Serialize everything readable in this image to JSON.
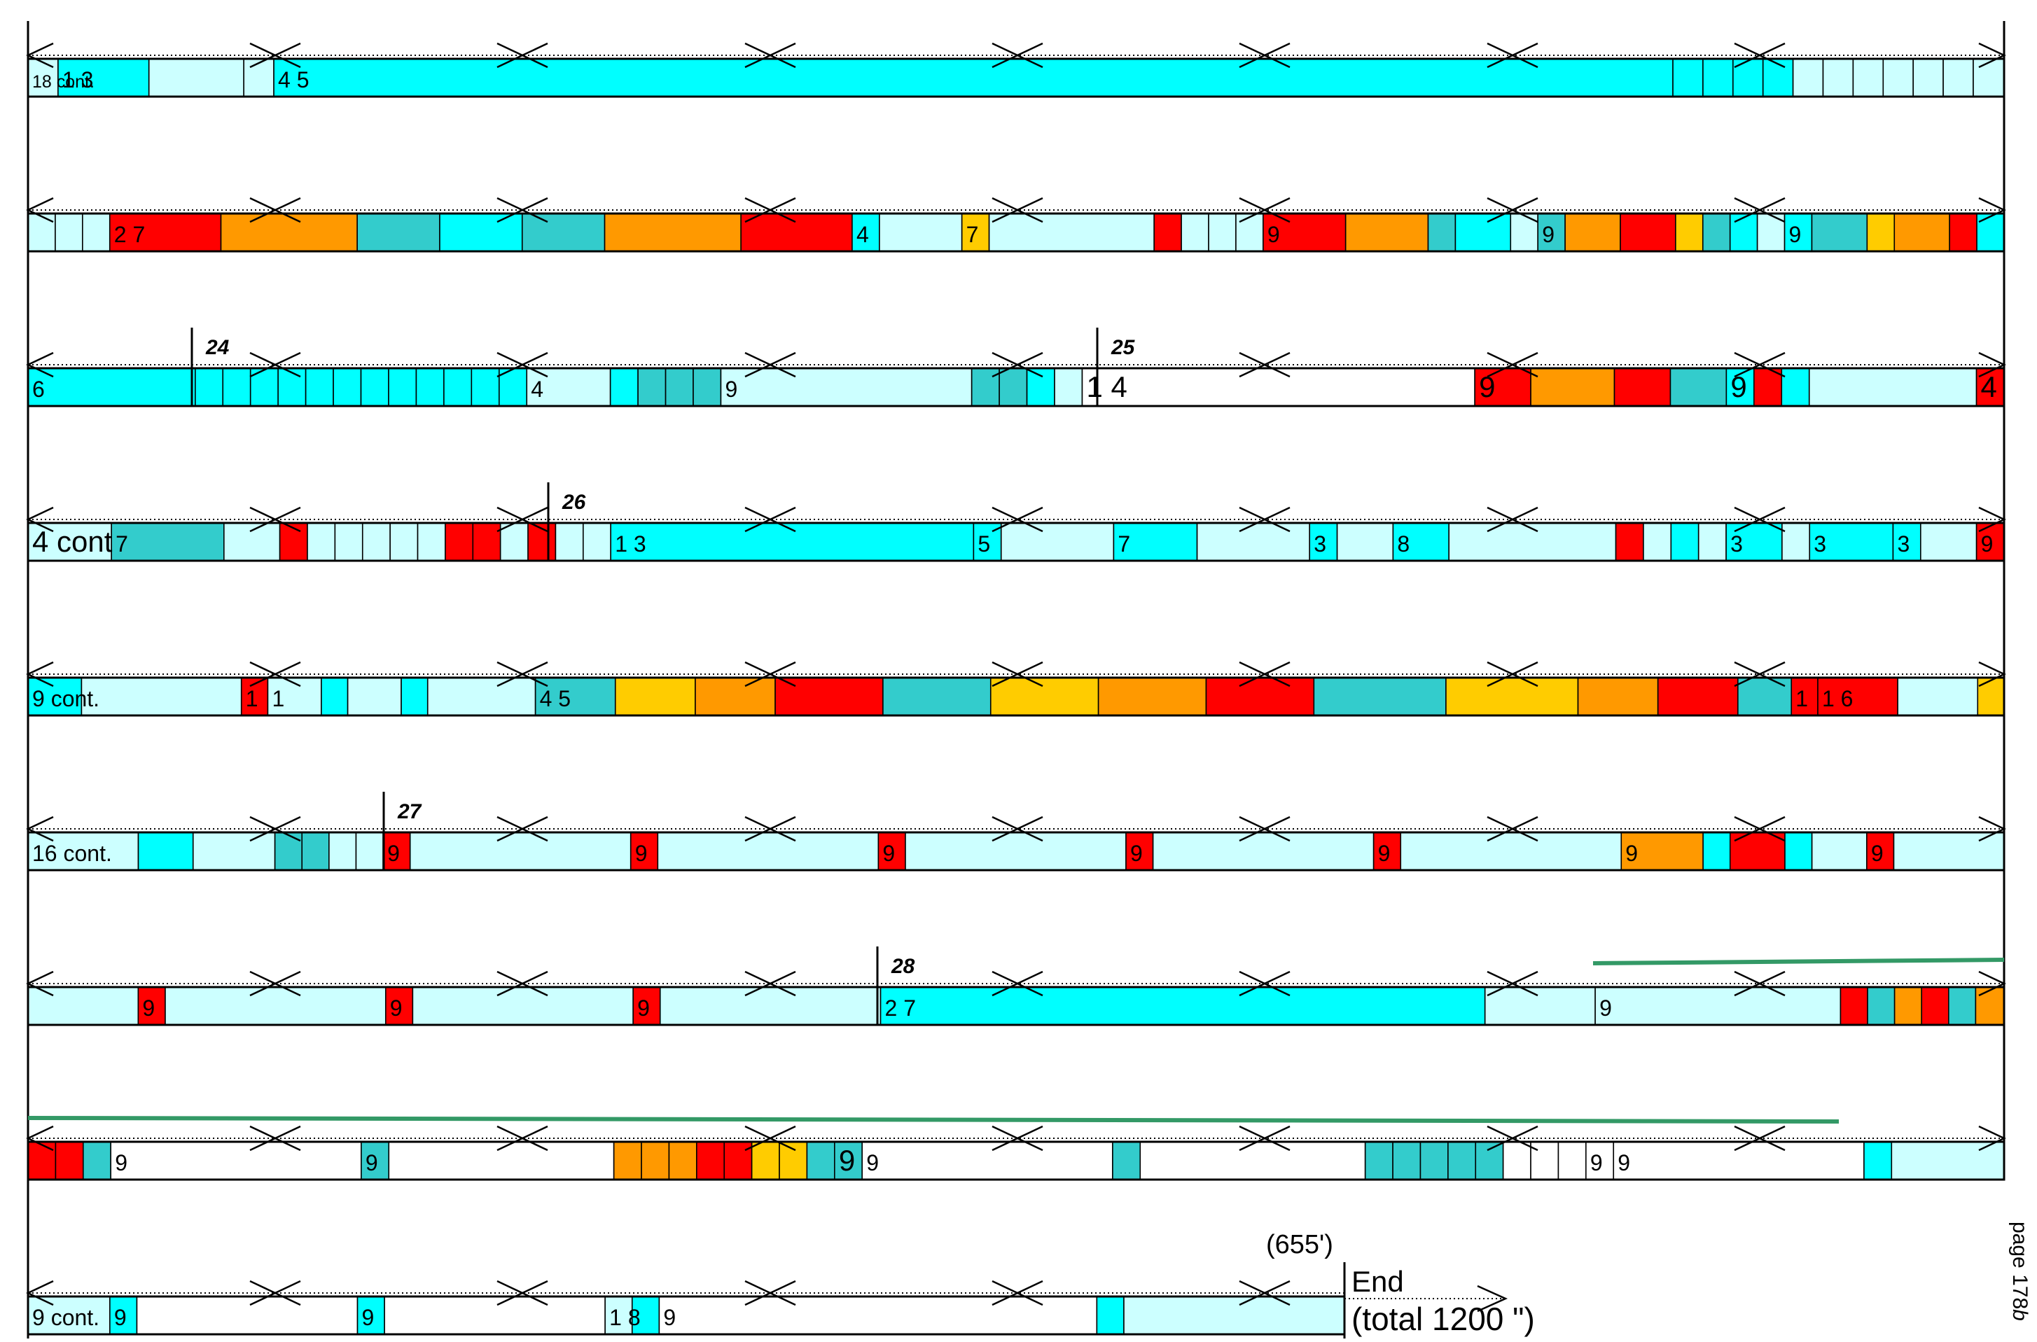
{
  "palette": {
    "W": "#ffffff",
    "L": "#ccffff",
    "C": "#00ffff",
    "T": "#33cccc",
    "O": "#ff9900",
    "R": "#ff0000",
    "Y": "#ffcc00",
    "G": "#339966"
  },
  "page_label": "page 178",
  "page_label_suffix": "b",
  "rows": [
    {
      "cells": "38 L 115 C 120 L 38 L 1770 C 38 C 38 C 38 C 38 C 38 L 38 L 38 L 38 L 38 L 38 L 39 L",
      "texts": [
        {
          "text": "18 cont.",
          "cell": 0,
          "size": "small"
        },
        {
          "text": "1  3",
          "cell": 1
        },
        {
          "text": "4  5",
          "cell": 4
        }
      ]
    },
    {
      "cells": "38 L 38 L 38 L 155 R 190 O 115 T 115 C 115 T 190 O 155 R 38 C 115 L 38 Y 230 L 38 R 38 L 38 L 38 L 115 R 115 O 38 T 77 C 38 L 38 T 77 O 77 R 38 Y 38 T 38 C 38 L 38 C 77 T 38 Y 77 O 38 R 38 C",
      "texts": [
        {
          "text": "2  7",
          "cell": 3
        },
        {
          "text": "4",
          "cell": 10
        },
        {
          "text": "7",
          "cell": 12
        },
        {
          "text": "9",
          "cell": 18
        },
        {
          "text": "9",
          "cell": 23
        },
        {
          "text": "9",
          "cell": 30
        }
      ]
    },
    {
      "cells": "230 C 38 C 38 C 38 C 38 C 38 C 38 C 38 C 38 C 38 C 38 C 38 C 38 C 115 L 38 C 38 T 38 T 38 T 345 L 38 T 38 T 38 C 38 L 540 W 77 R 115 O 77 R 77 T 38 C 38 R 38 C 230 L 38 R",
      "texts": [
        {
          "text": "6",
          "cell": 0
        },
        {
          "text": "4",
          "cell": 13
        },
        {
          "text": "9",
          "cell": 18
        },
        {
          "text": "1  4",
          "cell": 23,
          "size": "large"
        },
        {
          "text": "9",
          "cell": 24,
          "size": "large"
        },
        {
          "text": "9",
          "cell": 28,
          "size": "large"
        },
        {
          "text": "4",
          "cell": 32,
          "size": "large"
        }
      ]
    },
    {
      "cells": "115 L 155 T 77 L 38 R 38 L 38 L 38 L 38 L 38 L 38 R 38 R 38 L 38 R 38 L 38 L 500 C 38 C 155 L 115 C 155 L 38 C 77 L 77 C 230 L 38 R 38 L 38 C 38 L 77 C 38 L 115 C 38 C 77 L 38 R",
      "texts": [
        {
          "text": "4 cont",
          "cell": 0,
          "size": "large"
        },
        {
          "text": "7",
          "cell": 1
        },
        {
          "text": "1  3",
          "cell": 15
        },
        {
          "text": "5",
          "cell": 16
        },
        {
          "text": "7",
          "cell": 18
        },
        {
          "text": "3",
          "cell": 20
        },
        {
          "text": "8",
          "cell": 22
        },
        {
          "text": "3",
          "cell": 28
        },
        {
          "text": "3",
          "cell": 30
        },
        {
          "text": "3",
          "cell": 31
        },
        {
          "text": "9",
          "cell": 33
        }
      ]
    },
    {
      "cells": "77 C 230 L 38 R 77 L 38 C 77 L 38 C 155 L 115 T 115 Y 115 O 155 R 155 T 155 Y 155 O 155 R 190 T 190 Y 115 O 115 R 77 T 38 R 115 R 115 L 38 Y",
      "texts": [
        {
          "text": "9 cont.",
          "cell": 0
        },
        {
          "text": "1",
          "cell": 2
        },
        {
          "text": "1",
          "cell": 3
        },
        {
          "text": "4  5",
          "cell": 8
        },
        {
          "text": "1",
          "cell": 21
        },
        {
          "text": "1  6",
          "cell": 22
        }
      ]
    },
    {
      "cells": "155 L 77 C 115 L 38 T 38 T 38 L 38 L 38 R 310 L 38 R 310 L 38 R 310 L 38 R 310 L 38 R 310 L 115 O 38 C 77 R 38 C 77 L 38 R 155 L",
      "texts": [
        {
          "text": "16 cont.",
          "cell": 0
        },
        {
          "text": "9",
          "cell": 7
        },
        {
          "text": "9",
          "cell": 9
        },
        {
          "text": "9",
          "cell": 11
        },
        {
          "text": "9",
          "cell": 13
        },
        {
          "text": "9",
          "cell": 15
        },
        {
          "text": "9",
          "cell": 17
        },
        {
          "text": "9",
          "cell": 22
        }
      ]
    },
    {
      "cells": "155 L 38 R 310 L 38 R 310 L 38 R 310 L 850 C 155 L 345 L 38 R 38 T 38 O 38 R 38 T 40 O",
      "texts": [
        {
          "text": "9",
          "cell": 1
        },
        {
          "text": "9",
          "cell": 3
        },
        {
          "text": "9",
          "cell": 5
        },
        {
          "text": "2  7",
          "cell": 7
        },
        {
          "text": "9",
          "cell": 9
        }
      ]
    },
    {
      "cells": "38 R 38 R 38 T 345 W 38 T 310 W 38 O 38 O 38 O 38 R 38 R 38 Y 38 Y 38 T 38 T 345 W 38 T 310 W 38 T 38 T 38 T 38 T 38 T 38 W 38 W 38 W 38 W 345 W 38 C 155 L",
      "texts": [
        {
          "text": "9",
          "cell": 3
        },
        {
          "text": "9",
          "cell": 4
        },
        {
          "text": "9",
          "cell": 14,
          "size": "large"
        },
        {
          "text": "9",
          "cell": 15
        },
        {
          "text": "9",
          "cell": 26
        },
        {
          "text": "9",
          "cell": 27
        }
      ]
    },
    {
      "cells": "115 L 38 C 310 W 38 C 310 W 38 L 38 C 615 W 38 C 310 L",
      "texts": [
        {
          "text": "9 cont.",
          "cell": 0
        },
        {
          "text": "9",
          "cell": 1
        },
        {
          "text": "9",
          "cell": 3
        },
        {
          "text": "1  8",
          "cell": 5
        },
        {
          "text": "9",
          "cell": 7
        }
      ]
    }
  ],
  "section_markers": [
    {
      "label": "24",
      "row": 2
    },
    {
      "label": "25",
      "row": 2
    },
    {
      "label": "26",
      "row": 3
    },
    {
      "label": "27",
      "row": 5
    },
    {
      "label": "28",
      "row": 6
    }
  ],
  "end_block": {
    "duration": "(655')",
    "end_label": "End",
    "total": "(total 1200 \")"
  }
}
